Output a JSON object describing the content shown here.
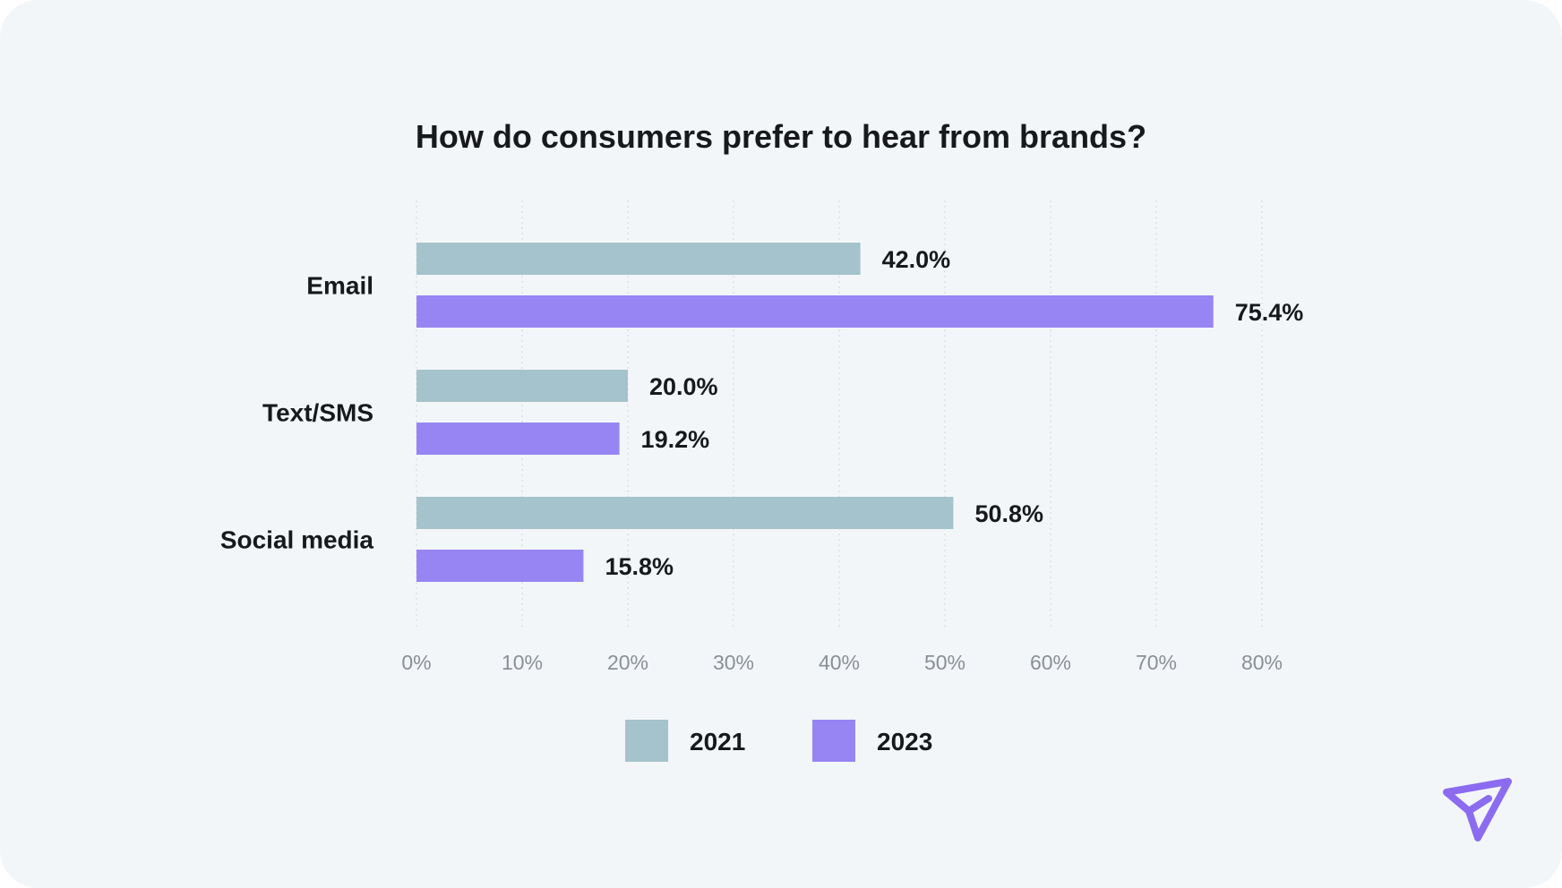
{
  "chart_data": {
    "type": "bar",
    "orientation": "horizontal",
    "title": "How do consumers prefer to hear from brands?",
    "categories": [
      "Email",
      "Text/SMS",
      "Social media"
    ],
    "series": [
      {
        "name": "2021",
        "values": [
          42.0,
          20.0,
          50.8
        ],
        "labels": [
          "42.0%",
          "20.0%",
          "50.8%"
        ],
        "color": "#a4c3cc"
      },
      {
        "name": "2023",
        "values": [
          75.4,
          19.2,
          15.8
        ],
        "labels": [
          "75.4%",
          "19.2%",
          "15.8%"
        ],
        "color": "#9685f3"
      }
    ],
    "x_ticks": [
      "0%",
      "10%",
      "20%",
      "30%",
      "40%",
      "50%",
      "60%",
      "70%",
      "80%"
    ],
    "xlim": [
      0,
      80
    ],
    "grid": true,
    "legend": "bottom-center"
  },
  "colors": {
    "background": "#f3f6f9",
    "grid": "#d7dce1",
    "logo": "#8b6cf0"
  },
  "logo": {
    "icon": "paper-plane-icon"
  }
}
